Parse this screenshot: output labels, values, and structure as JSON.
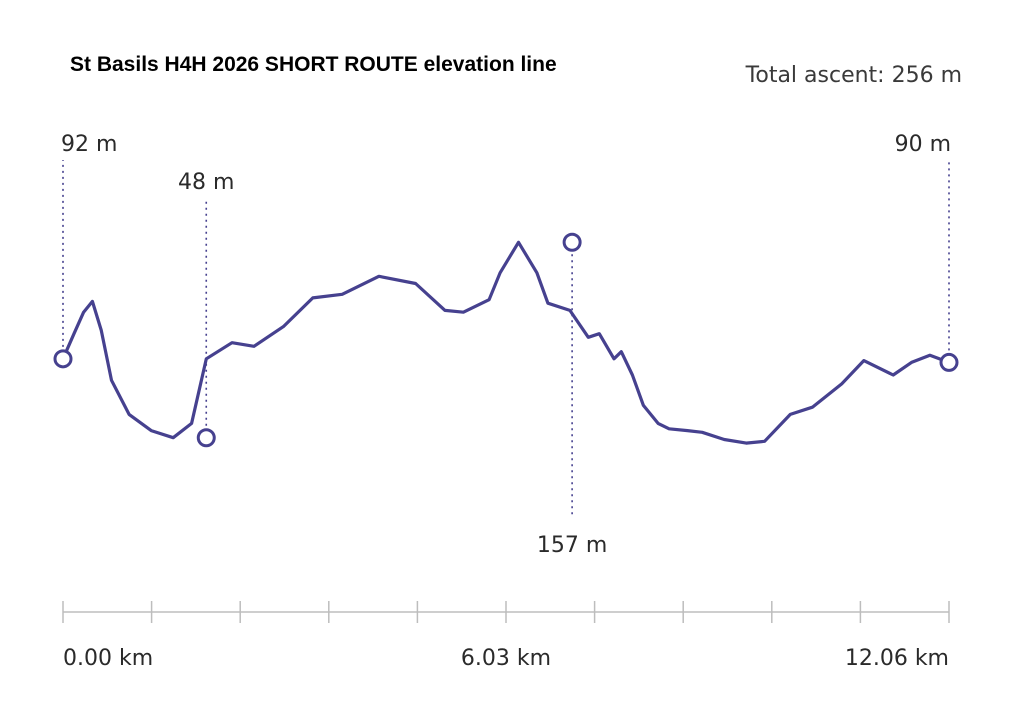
{
  "chart_data": {
    "type": "line",
    "title": "St Basils H4H 2026 SHORT ROUTE elevation line",
    "subtitle": "Total ascent: 256 m",
    "x_unit": "km",
    "xlim": [
      0,
      12.06
    ],
    "ylim": [
      30,
      175
    ],
    "tick_labels": [
      "0.00 km",
      "6.03 km",
      "12.06 km"
    ],
    "tick_values": [
      0,
      6.03,
      12.06
    ],
    "minor_tick_count": 11,
    "grid": false,
    "legend": "none",
    "line_color": "#46418f",
    "series": [
      {
        "x": [
          0,
          0.15,
          0.28,
          0.4,
          0.52,
          0.66,
          0.9,
          1.2,
          1.5,
          1.75,
          1.95,
          2.3,
          2.6,
          3.0,
          3.4,
          3.8,
          4.3,
          4.8,
          5.2,
          5.45,
          5.8,
          5.95,
          6.2,
          6.45,
          6.6,
          6.9,
          7.15,
          7.3,
          7.5,
          7.6,
          7.75,
          7.9,
          8.1,
          8.25,
          8.5,
          8.7,
          9.0,
          9.3,
          9.55,
          9.9,
          10.2,
          10.6,
          10.9,
          11.3,
          11.55,
          11.8,
          12.06
        ],
        "y": [
          92,
          106,
          118,
          124,
          108,
          80,
          61,
          52,
          48,
          56,
          92,
          101,
          99,
          110,
          126,
          128,
          138,
          134,
          119,
          118,
          125,
          140,
          157,
          140,
          123,
          119,
          104,
          106,
          92,
          96,
          83,
          66,
          56,
          53,
          52,
          51,
          47,
          45,
          46,
          61,
          65,
          78,
          91,
          83,
          90,
          94,
          90
        ]
      }
    ],
    "annotations": [
      {
        "x": 0,
        "y": 92,
        "label": "92 m",
        "position": "above"
      },
      {
        "x": 1.95,
        "y": 48,
        "label": "48 m",
        "position": "above"
      },
      {
        "x": 6.93,
        "y": 157,
        "label": "157 m",
        "position": "below"
      },
      {
        "x": 12.06,
        "y": 90,
        "label": "90 m",
        "position": "above"
      }
    ]
  }
}
